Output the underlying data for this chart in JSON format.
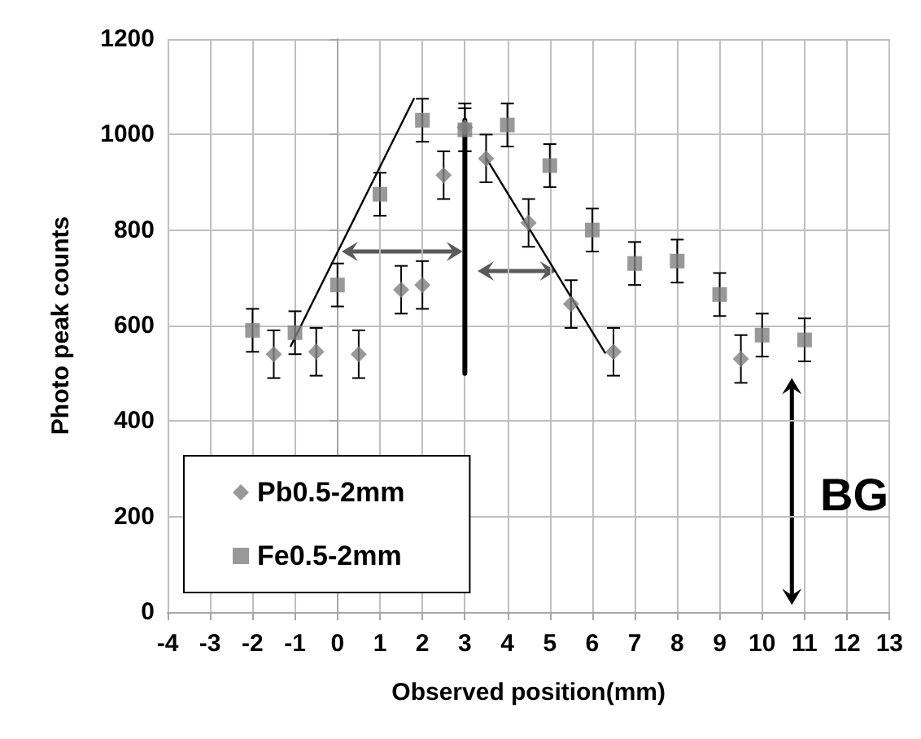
{
  "chart_data": {
    "type": "scatter",
    "xlabel": "Observed position(mm)",
    "ylabel": "Photo peak counts",
    "xlim": [
      -4,
      13
    ],
    "xticks": [
      -4,
      -3,
      -2,
      -1,
      0,
      1,
      2,
      3,
      4,
      5,
      6,
      7,
      8,
      9,
      10,
      11,
      12,
      13
    ],
    "ylim": [
      0,
      1200
    ],
    "yticks": [
      0,
      200,
      400,
      600,
      800,
      1000,
      1200
    ],
    "grid": true,
    "legend": "bottom left",
    "annotations": [
      "BG"
    ],
    "series": [
      {
        "name": "Pb0.5-2mm",
        "marker": "diamond",
        "color": "#7f7f7f",
        "x": [
          -1.5,
          -0.5,
          0.5,
          1.5,
          2,
          2.5,
          3,
          3.5,
          4.5,
          5.5,
          6.5,
          9.5
        ],
        "values": [
          540,
          545,
          540,
          675,
          685,
          915,
          1015,
          950,
          815,
          645,
          545,
          530
        ],
        "errors": [
          50,
          50,
          50,
          50,
          50,
          50,
          50,
          50,
          50,
          50,
          50,
          50
        ]
      },
      {
        "name": "Fe0.5-2mm",
        "marker": "square",
        "color": "#7f7f7f",
        "x": [
          -2,
          -1,
          0,
          1,
          2,
          3,
          4,
          5,
          6,
          7,
          8,
          9,
          10,
          11
        ],
        "values": [
          590,
          585,
          685,
          875,
          1030,
          1010,
          1020,
          935,
          800,
          730,
          735,
          665,
          580,
          570
        ],
        "errors": [
          45,
          45,
          45,
          45,
          45,
          45,
          45,
          45,
          45,
          45,
          45,
          45,
          45,
          45
        ]
      },
      {
        "type": "line",
        "marker": "none",
        "color": "#000000",
        "x": [
          -1.1,
          1.8
        ],
        "values": [
          557,
          1075
        ]
      },
      {
        "type": "line",
        "marker": "none",
        "color": "#000000",
        "x": [
          3.5,
          6.3
        ],
        "values": [
          951,
          543
        ]
      },
      {
        "type": "line",
        "marker": "none",
        "color": "#000000",
        "x": [
          3,
          3
        ],
        "values": [
          500,
          1030
        ]
      }
    ]
  }
}
